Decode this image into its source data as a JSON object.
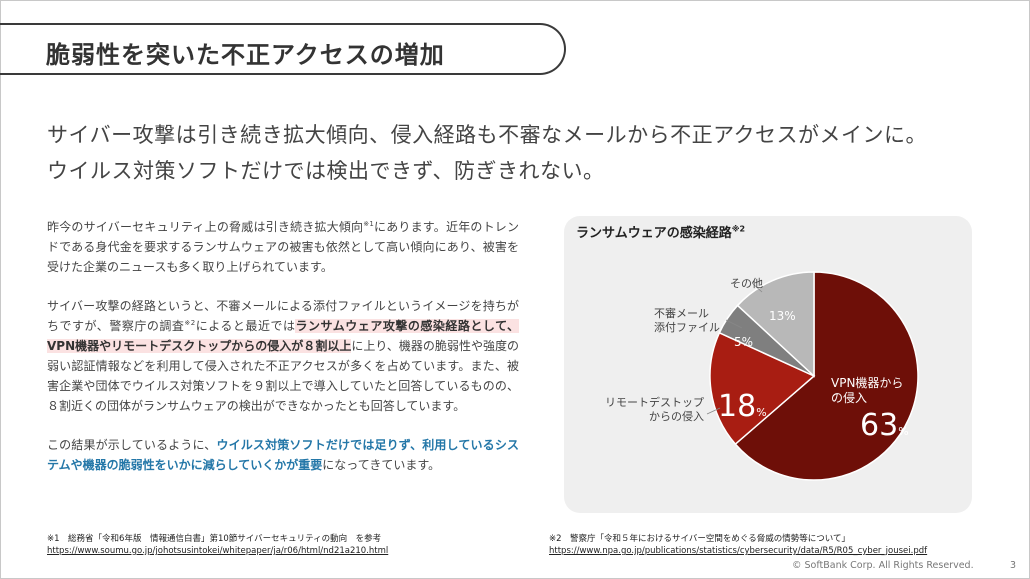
{
  "slide": {
    "title": "脆弱性を突いた不正アクセスの増加",
    "lead": [
      "サイバー攻撃は引き続き拡大傾向、侵入経路も不審なメールから不正アクセスがメインに。",
      "ウイルス対策ソフトだけでは検出できず、防ぎきれない。"
    ],
    "para1": {
      "t1": "昨今のサイバーセキュリティ上の脅威は引き続き拡大傾向",
      "sup": "※1",
      "t2": "にあります。近年のトレンドである身代金を要求するランサムウェアの被害も依然として高い傾向にあり、被害を受けた企業のニュースも多く取り上げられています。"
    },
    "para2": {
      "t1": "サイバー攻撃の経路というと、不審メールによる添付ファイルというイメージを持ちがちですが、警察庁の調査",
      "sup": "※2",
      "t2": "によると最近では",
      "hl": "ランサムウェア攻撃の感染経路として、VPN機器やリモートデスクトップからの侵入が８割以上",
      "t3": "に上り、機器の脆弱性や強度の弱い認証情報などを利用して侵入された不正アクセスが多くを占めています。また、被害企業や団体でウイルス対策ソフトを９割以上で導入していたと回答しているものの、８割近くの団体がランサムウェアの検出ができなかったとも回答しています。"
    },
    "para3": {
      "t1": "この結果が示しているように、",
      "blue": "ウイルス対策ソフトだけでは足りず、利用しているシステムや機器の脆弱性をいかに減らしていくかが重要",
      "t2": "になってきています。"
    },
    "footnote1": {
      "label": "※1　総務省「令和6年版　情報通信白書」第10節サイバーセキュリティの動向　を参考",
      "url": "https://www.soumu.go.jp/johotsusintokei/whitepaper/ja/r06/html/nd21a210.html"
    },
    "footnote2": {
      "label": "※2　警察庁「令和５年におけるサイバー空間をめぐる脅威の情勢等について」",
      "url": "https://www.npa.go.jp/publications/statistics/cybersecurity/data/R5/R05_cyber_jousei.pdf"
    },
    "copyright": "© SoftBank Corp. All Rights Reserved.",
    "page_number": "3"
  },
  "chart_data": {
    "type": "pie",
    "title": "ランサムウェアの感染経路",
    "title_sup": "※2",
    "series": [
      {
        "name": "VPN機器からの侵入",
        "label_lines": [
          "VPN機器から",
          "の侵入"
        ],
        "value": 63,
        "color": "#6e0f08"
      },
      {
        "name": "リモートデストップからの侵入",
        "label_lines": [
          "リモートデストップ",
          "からの侵入"
        ],
        "value": 18,
        "color": "#a81d12"
      },
      {
        "name": "不審メール添付ファイル",
        "label_lines": [
          "不審メール",
          "添付ファイル"
        ],
        "value": 5,
        "color": "#7f7f7f"
      },
      {
        "name": "その他",
        "label_lines": [
          "その他"
        ],
        "value": 13,
        "color": "#b8b8b8"
      }
    ],
    "value_labels": {
      "vpn": {
        "num": "63",
        "unit": "%"
      },
      "remote": {
        "num": "18",
        "unit": "%"
      },
      "mail": "5%",
      "other": "13%"
    }
  }
}
